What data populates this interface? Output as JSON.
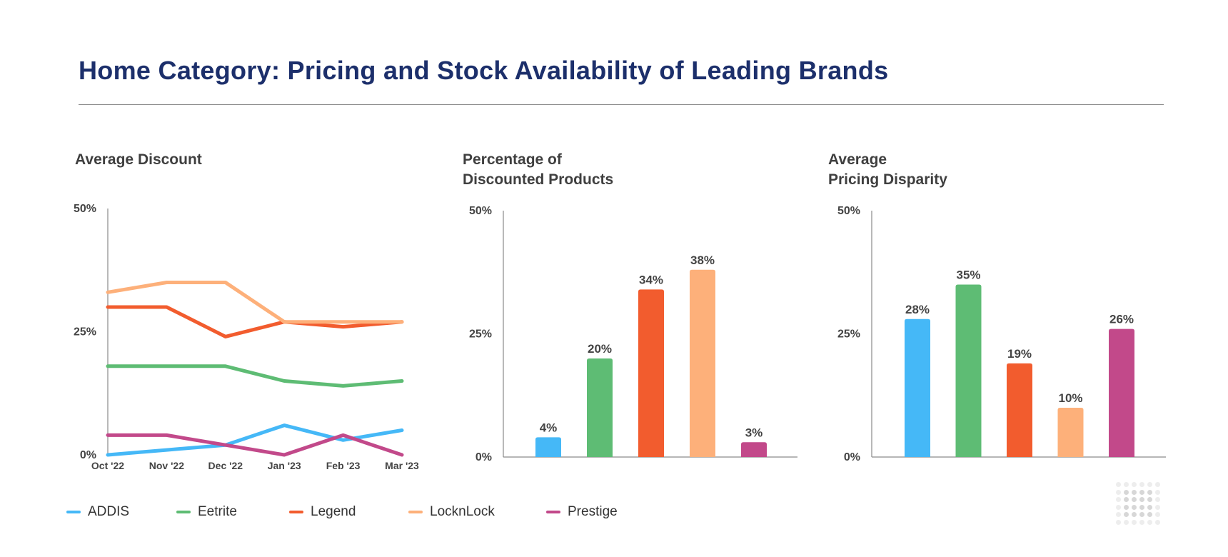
{
  "page_title": "Home Category: Pricing and Stock Availability of Leading Brands",
  "colors": {
    "title": "#1c2f6b",
    "ADDIS": "#45b8f7",
    "Eetrite": "#5ebc74",
    "Legend": "#f25c2e",
    "LocknLock": "#fdb07a",
    "Prestige": "#c2498a",
    "axis": "#8a8a8a"
  },
  "legend": [
    {
      "label": "ADDIS",
      "color": "#45b8f7"
    },
    {
      "label": "Eetrite",
      "color": "#5ebc74"
    },
    {
      "label": "Legend",
      "color": "#f25c2e"
    },
    {
      "label": "LocknLock",
      "color": "#fdb07a"
    },
    {
      "label": "Prestige",
      "color": "#c2498a"
    }
  ],
  "chart_titles": {
    "avg_discount": "Average Discount",
    "pct_discounted_line1": "Percentage of",
    "pct_discounted_line2": "Discounted Products",
    "pricing_disparity_line1": "Average",
    "pricing_disparity_line2": "Pricing Disparity"
  },
  "chart_data": [
    {
      "type": "line",
      "title": "Average Discount",
      "x": [
        "Oct '22",
        "Nov '22",
        "Dec '22",
        "Jan '23",
        "Feb '23",
        "Mar '23"
      ],
      "ylim": [
        0,
        50
      ],
      "yticks": [
        "0%",
        "25%",
        "50%"
      ],
      "series": [
        {
          "name": "ADDIS",
          "color": "#45b8f7",
          "values": [
            0,
            1,
            2,
            6,
            3,
            5
          ]
        },
        {
          "name": "Eetrite",
          "color": "#5ebc74",
          "values": [
            18,
            18,
            18,
            15,
            14,
            15
          ]
        },
        {
          "name": "Legend",
          "color": "#f25c2e",
          "values": [
            30,
            30,
            24,
            27,
            26,
            27
          ]
        },
        {
          "name": "LocknLock",
          "color": "#fdb07a",
          "values": [
            33,
            35,
            35,
            27,
            27,
            27
          ]
        },
        {
          "name": "Prestige",
          "color": "#c2498a",
          "values": [
            4,
            4,
            2,
            0,
            4,
            0
          ]
        }
      ],
      "grid": false
    },
    {
      "type": "bar",
      "title": "Percentage of Discounted Products",
      "categories": [
        "ADDIS",
        "Eetrite",
        "Legend",
        "LocknLock",
        "Prestige"
      ],
      "values": [
        4,
        20,
        34,
        38,
        3
      ],
      "labels": [
        "4%",
        "20%",
        "34%",
        "38%",
        "3%"
      ],
      "colors": [
        "#45b8f7",
        "#5ebc74",
        "#f25c2e",
        "#fdb07a",
        "#c2498a"
      ],
      "ylim": [
        0,
        50
      ],
      "yticks": [
        "0%",
        "25%",
        "50%"
      ],
      "grid": false
    },
    {
      "type": "bar",
      "title": "Average Pricing Disparity",
      "categories": [
        "ADDIS",
        "Eetrite",
        "Legend",
        "LocknLock",
        "Prestige"
      ],
      "values": [
        28,
        35,
        19,
        10,
        26
      ],
      "labels": [
        "28%",
        "35%",
        "19%",
        "10%",
        "26%"
      ],
      "colors": [
        "#45b8f7",
        "#5ebc74",
        "#f25c2e",
        "#fdb07a",
        "#c2498a"
      ],
      "ylim": [
        0,
        50
      ],
      "yticks": [
        "0%",
        "25%",
        "50%"
      ],
      "grid": false
    }
  ]
}
